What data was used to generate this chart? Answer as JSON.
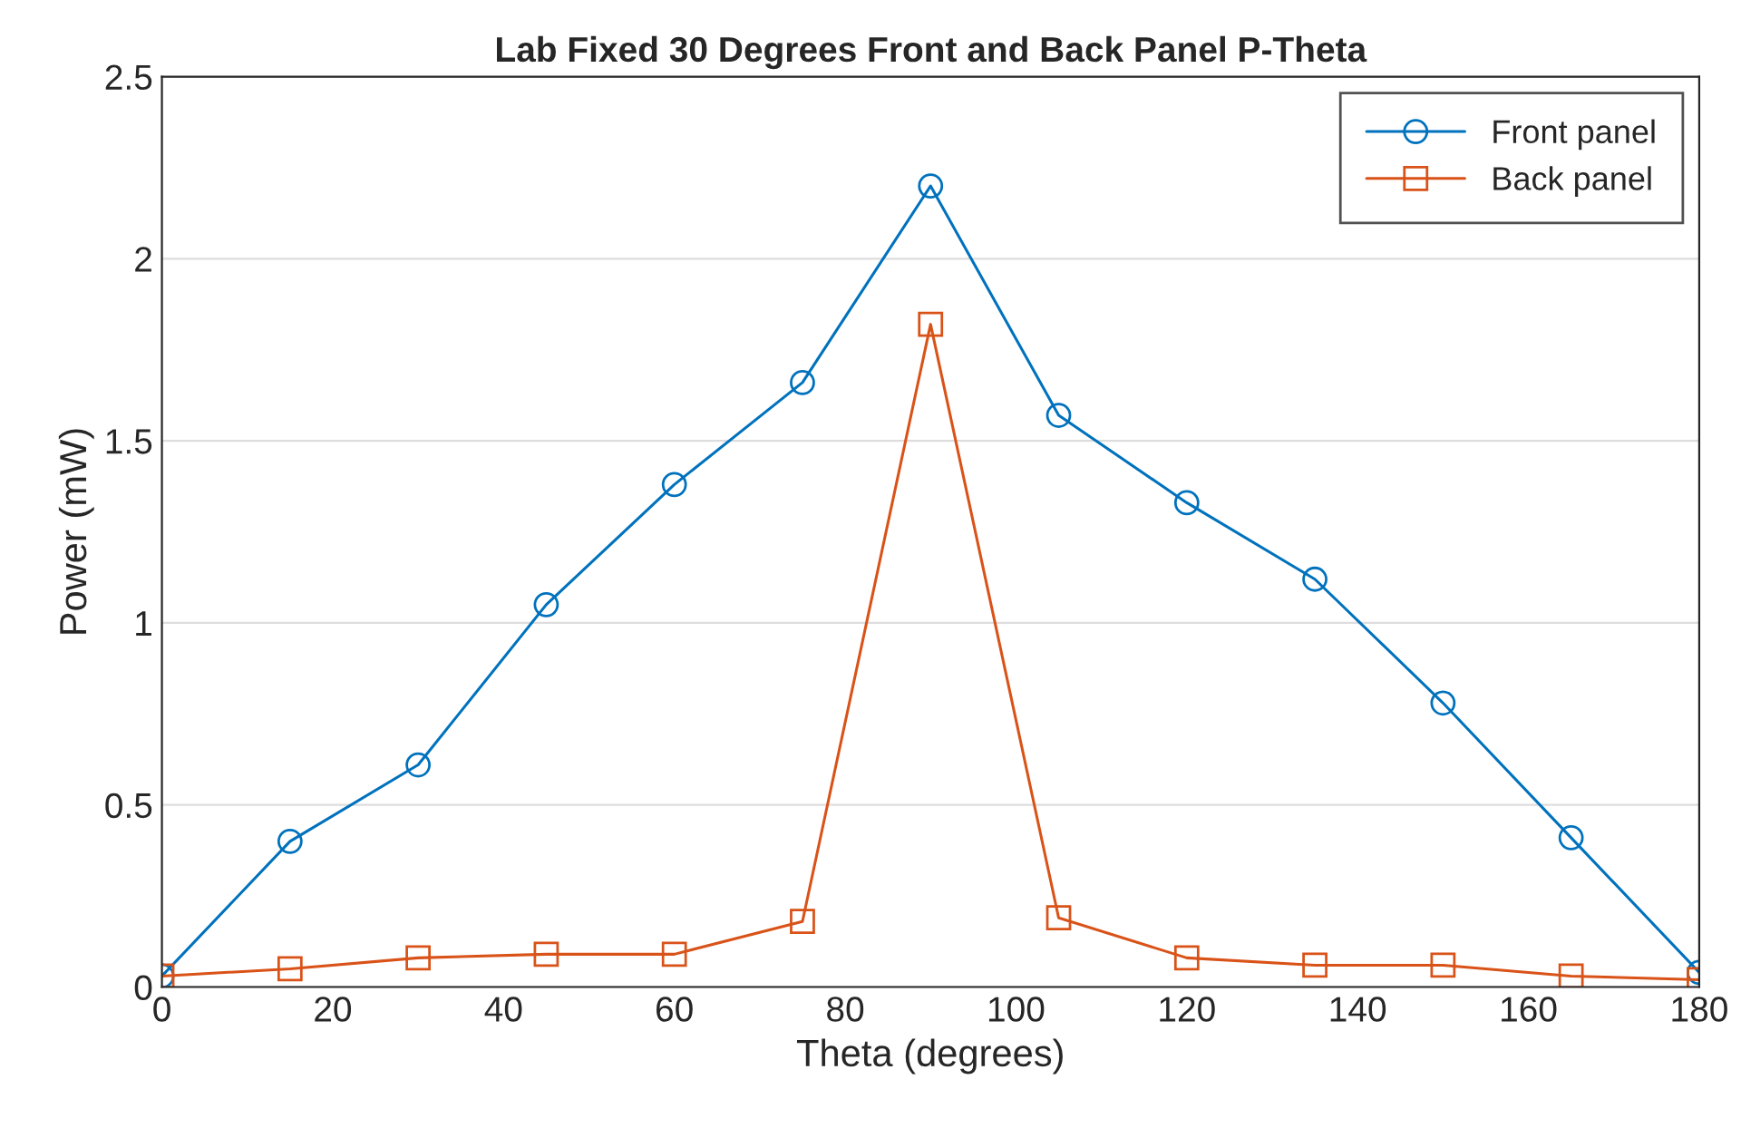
{
  "chart_data": {
    "type": "line",
    "title": "Lab Fixed 30 Degrees Front and Back Panel P-Theta",
    "xlabel": "Theta (degrees)",
    "ylabel": "Power (mW)",
    "x": [
      0,
      15,
      30,
      45,
      60,
      75,
      90,
      105,
      120,
      135,
      150,
      165,
      180
    ],
    "series": [
      {
        "name": "Front panel",
        "color": "#0072bd",
        "marker": "circle",
        "values": [
          0.03,
          0.4,
          0.61,
          1.05,
          1.38,
          1.66,
          2.2,
          1.57,
          1.33,
          1.12,
          0.78,
          0.41,
          0.04
        ]
      },
      {
        "name": "Back panel",
        "color": "#d95319",
        "marker": "square",
        "values": [
          0.03,
          0.05,
          0.08,
          0.09,
          0.09,
          0.18,
          1.82,
          0.19,
          0.08,
          0.06,
          0.06,
          0.03,
          0.02
        ]
      }
    ],
    "xlim": [
      0,
      180
    ],
    "xticks": [
      0,
      20,
      40,
      60,
      80,
      100,
      120,
      140,
      160,
      180
    ],
    "ylim": [
      0,
      2.5
    ],
    "yticks": [
      0,
      0.5,
      1,
      1.5,
      2,
      2.5
    ],
    "grid": "y",
    "legend": "top right",
    "line_style": "solid"
  }
}
